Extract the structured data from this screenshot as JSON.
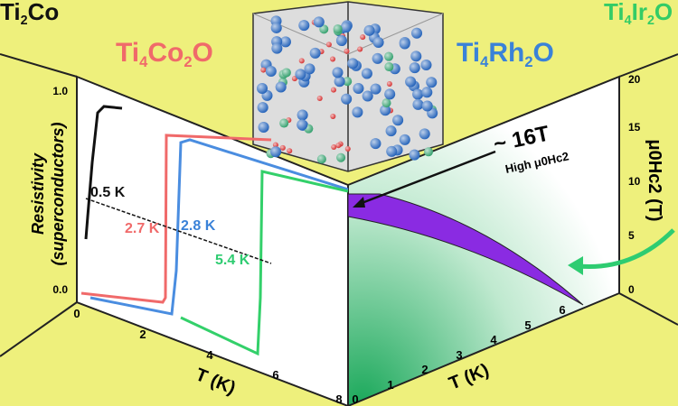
{
  "labels": {
    "ti2co": [
      {
        "t": "Ti"
      },
      {
        "t": "2",
        "sub": true
      },
      {
        "t": "Co"
      }
    ],
    "ti4co2o": [
      {
        "t": "Ti"
      },
      {
        "t": "4",
        "sub": true
      },
      {
        "t": "Co"
      },
      {
        "t": "2",
        "sub": true
      },
      {
        "t": "O"
      }
    ],
    "ti4rh2o": [
      {
        "t": "Ti"
      },
      {
        "t": "4",
        "sub": true
      },
      {
        "t": "Rh"
      },
      {
        "t": "2",
        "sub": true
      },
      {
        "t": "O"
      }
    ],
    "ti4ir2o": [
      {
        "t": "Ti"
      },
      {
        "t": "4",
        "sub": true
      },
      {
        "t": "Ir"
      },
      {
        "t": "2",
        "sub": true
      },
      {
        "t": "O"
      }
    ]
  },
  "left_plot": {
    "y_label_1": "Resistivity",
    "y_label_2": "(superconductors)",
    "yticks": [
      "1.0",
      "0.0"
    ],
    "xticks": [
      "0",
      "2",
      "4",
      "6",
      "8"
    ],
    "x_label": "T (K)",
    "annotations": [
      "0.5 K",
      "2.7 K",
      "2.8 K",
      "5.4 K"
    ]
  },
  "right_plot": {
    "annotation": "~ 16T",
    "annotation_sub": "High μ0Hc2",
    "y_label": "μ0Hc2 (T)",
    "yticks": [
      "0",
      "5",
      "10",
      "15",
      "20"
    ],
    "xticks": [
      "0",
      "1",
      "2",
      "3",
      "4",
      "5",
      "6"
    ],
    "x_label": "T (K)"
  }
}
